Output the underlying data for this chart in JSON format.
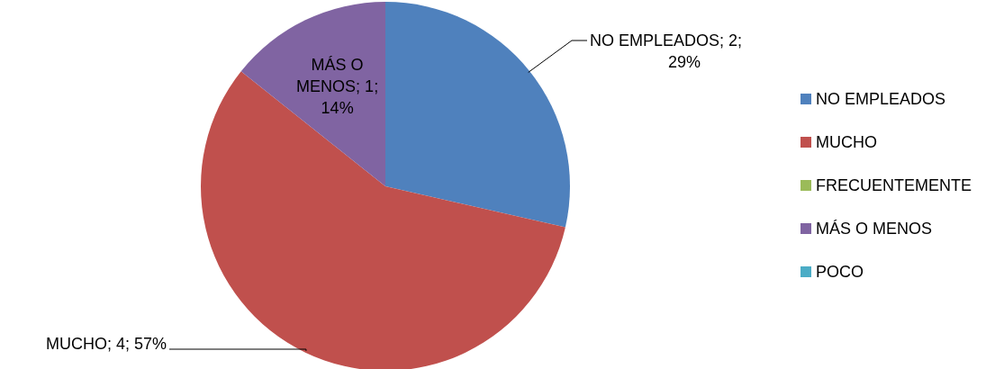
{
  "chart_data": {
    "type": "pie",
    "categories": [
      "NO EMPLEADOS",
      "MUCHO",
      "FRECUENTEMENTE",
      "MÁS O MENOS",
      "POCO"
    ],
    "values": [
      2,
      4,
      0,
      1,
      0
    ],
    "colors": [
      "#4f81bd",
      "#c0504d",
      "#9bbb59",
      "#8064a2",
      "#4bacc6"
    ],
    "value_labels": [
      "NO EMPLEADOS; 2; 29%",
      "MUCHO; 4; 57%",
      null,
      "MÁS O MENOS; 1; 14%",
      null
    ],
    "legend": "right"
  }
}
